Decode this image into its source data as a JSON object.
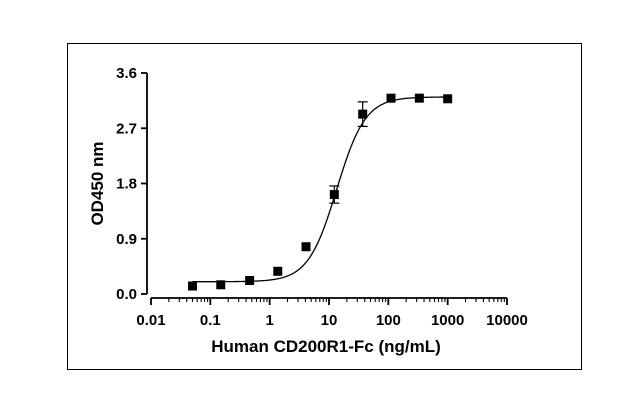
{
  "chart_data": {
    "type": "scatter",
    "title": "",
    "xlabel": "Human CD200R1-Fc (ng/mL)",
    "ylabel": "OD450 nm",
    "x_scale": "log",
    "xlim": [
      0.01,
      10000
    ],
    "ylim": [
      0.0,
      3.6
    ],
    "x_ticks": [
      0.01,
      0.1,
      1,
      10,
      100,
      1000,
      10000
    ],
    "x_tick_labels": [
      "0.01",
      "0.1",
      "1",
      "10",
      "100",
      "1000",
      "10000"
    ],
    "y_ticks": [
      0.0,
      0.9,
      1.8,
      2.7,
      3.6
    ],
    "y_tick_labels": [
      "0.0",
      "0.9",
      "1.8",
      "2.7",
      "3.6"
    ],
    "grid": false,
    "legend": "none",
    "marker_color": "#000000",
    "points": [
      {
        "x": 0.05,
        "y": 0.13,
        "err": 0.0
      },
      {
        "x": 0.15,
        "y": 0.15,
        "err": 0.0
      },
      {
        "x": 0.46,
        "y": 0.22,
        "err": 0.0
      },
      {
        "x": 1.37,
        "y": 0.37,
        "err": 0.0
      },
      {
        "x": 4.1,
        "y": 0.77,
        "err": 0.0
      },
      {
        "x": 12.3,
        "y": 1.62,
        "err": 0.14
      },
      {
        "x": 37,
        "y": 2.93,
        "err": 0.2
      },
      {
        "x": 111,
        "y": 3.19,
        "err": 0.0
      },
      {
        "x": 333,
        "y": 3.19,
        "err": 0.0
      },
      {
        "x": 1000,
        "y": 3.18,
        "err": 0.0
      }
    ],
    "fit_curve": {
      "model": "4PL",
      "bottom": 0.2,
      "top": 3.21,
      "ec50": 13.5,
      "hill": 1.8
    }
  }
}
